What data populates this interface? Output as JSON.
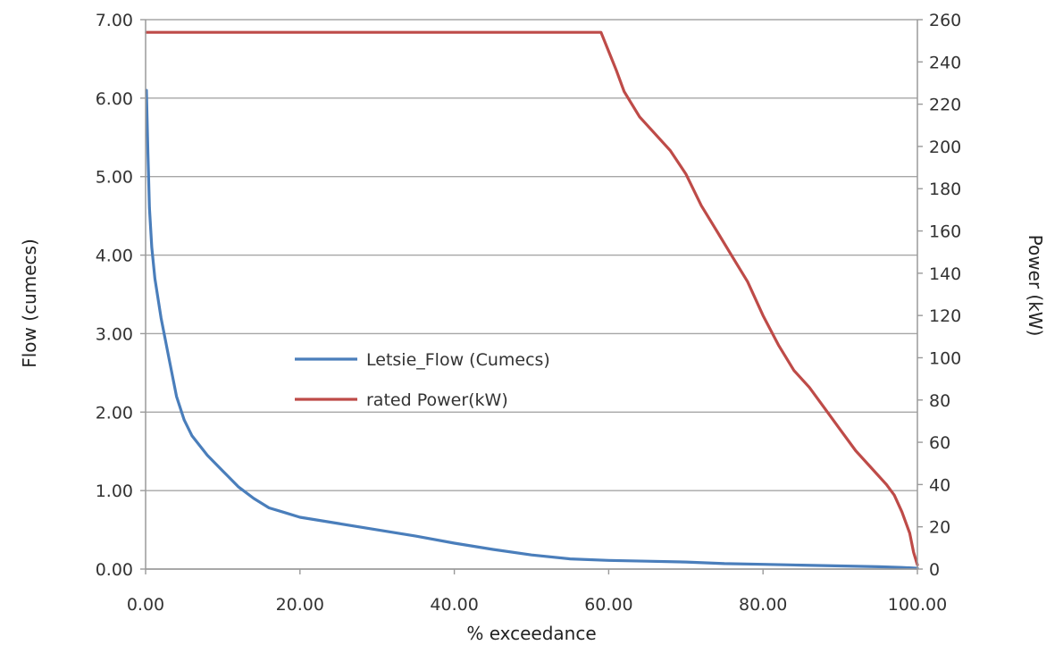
{
  "chart_data": {
    "type": "line",
    "title": "",
    "xlabel": "% exceedance",
    "ylabel": "Flow (cumecs)",
    "y2label": "Power (kW)",
    "xlim": [
      0,
      100
    ],
    "ylim": [
      0,
      7
    ],
    "y2lim": [
      0,
      260
    ],
    "x_ticks": [
      "0.00",
      "20.00",
      "40.00",
      "60.00",
      "80.00",
      "100.00"
    ],
    "y_ticks": [
      "0.00",
      "1.00",
      "2.00",
      "3.00",
      "4.00",
      "5.00",
      "6.00",
      "7.00"
    ],
    "y2_ticks": [
      "0",
      "20",
      "40",
      "60",
      "80",
      "100",
      "120",
      "140",
      "160",
      "180",
      "200",
      "220",
      "240",
      "260"
    ],
    "grid": "horizontal",
    "legend_position": "center-left",
    "series": [
      {
        "name": "Letsie_Flow (Cumecs)",
        "axis": "left",
        "color": "#4a7ebb",
        "points": [
          [
            0.1,
            6.1
          ],
          [
            0.3,
            5.3
          ],
          [
            0.5,
            4.6
          ],
          [
            0.8,
            4.1
          ],
          [
            1.2,
            3.7
          ],
          [
            2,
            3.2
          ],
          [
            3,
            2.7
          ],
          [
            4,
            2.2
          ],
          [
            5,
            1.9
          ],
          [
            6,
            1.7
          ],
          [
            8,
            1.45
          ],
          [
            10,
            1.25
          ],
          [
            12,
            1.05
          ],
          [
            14,
            0.9
          ],
          [
            16,
            0.78
          ],
          [
            18,
            0.72
          ],
          [
            20,
            0.66
          ],
          [
            25,
            0.58
          ],
          [
            30,
            0.5
          ],
          [
            35,
            0.42
          ],
          [
            40,
            0.33
          ],
          [
            45,
            0.25
          ],
          [
            50,
            0.18
          ],
          [
            55,
            0.13
          ],
          [
            60,
            0.11
          ],
          [
            65,
            0.1
          ],
          [
            70,
            0.09
          ],
          [
            75,
            0.07
          ],
          [
            80,
            0.06
          ],
          [
            85,
            0.05
          ],
          [
            90,
            0.04
          ],
          [
            95,
            0.03
          ],
          [
            98,
            0.02
          ],
          [
            100,
            0.01
          ]
        ]
      },
      {
        "name": "rated Power(kW)",
        "axis": "right",
        "color": "#be4b48",
        "points": [
          [
            0.1,
            254
          ],
          [
            59,
            254
          ],
          [
            60,
            245
          ],
          [
            61,
            236
          ],
          [
            62,
            226
          ],
          [
            63,
            220
          ],
          [
            64,
            214
          ],
          [
            66,
            206
          ],
          [
            68,
            198
          ],
          [
            70,
            187
          ],
          [
            72,
            172
          ],
          [
            74,
            160
          ],
          [
            76,
            148
          ],
          [
            78,
            136
          ],
          [
            80,
            120
          ],
          [
            82,
            106
          ],
          [
            84,
            94
          ],
          [
            86,
            86
          ],
          [
            88,
            76
          ],
          [
            90,
            66
          ],
          [
            92,
            56
          ],
          [
            94,
            48
          ],
          [
            96,
            40
          ],
          [
            97,
            35
          ],
          [
            98,
            27
          ],
          [
            99,
            17
          ],
          [
            99.5,
            8
          ],
          [
            100,
            2
          ]
        ]
      }
    ]
  }
}
